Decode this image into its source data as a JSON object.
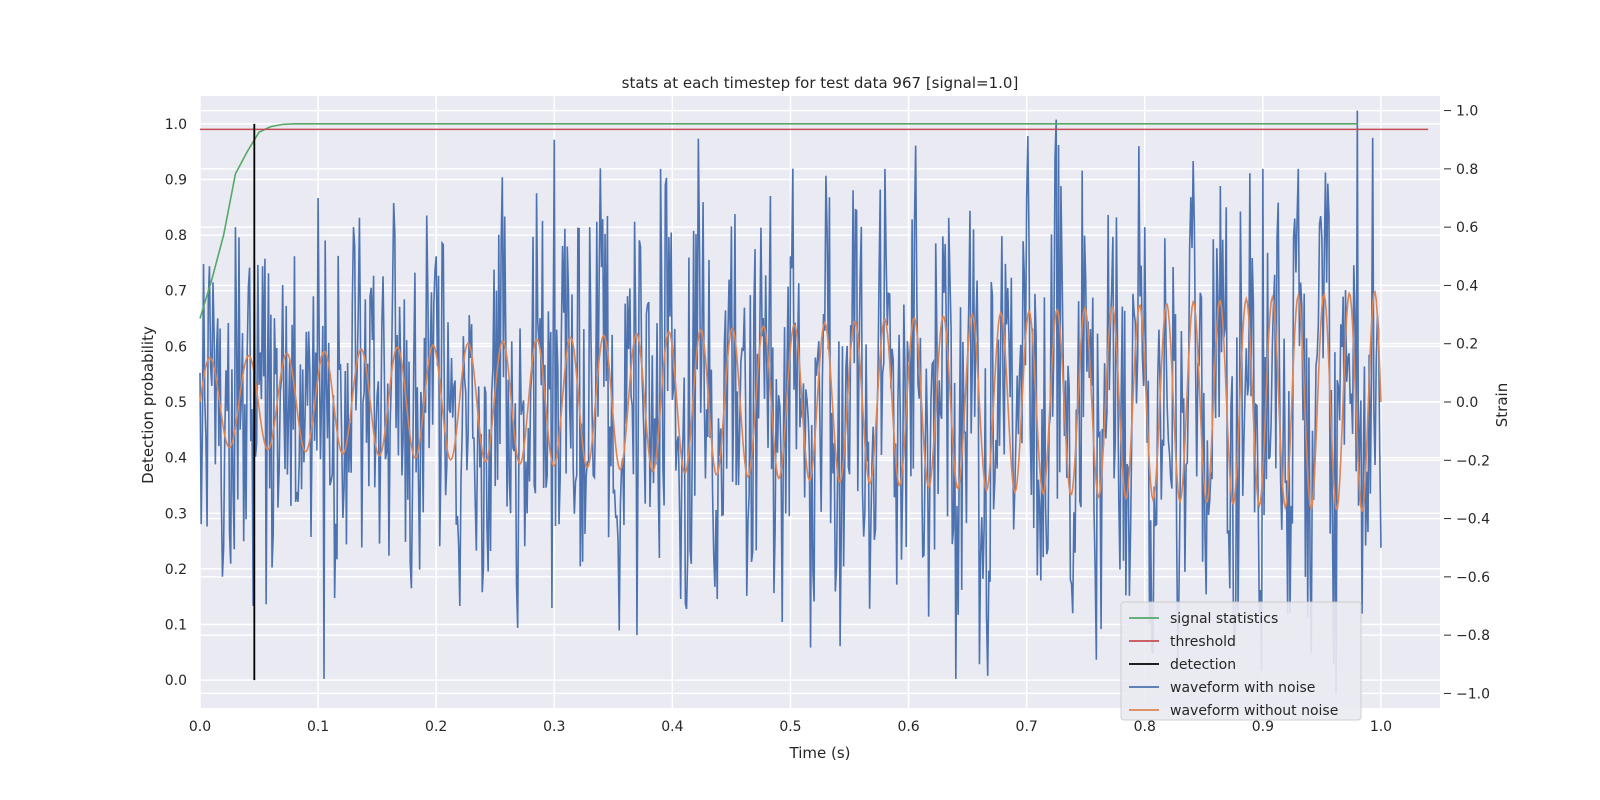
{
  "chart_data": {
    "type": "line",
    "title": "stats at each timestep for test data 967 [signal=1.0]",
    "xlabel": "Time (s)",
    "ylabel_left": "Detection probability",
    "ylabel_right": "Strain",
    "xlim": [
      0.0,
      1.05
    ],
    "ylim_left": [
      -0.05,
      1.05
    ],
    "ylim_right": [
      -1.05,
      1.05
    ],
    "grid": true,
    "legend_position": "lower right",
    "x_ticks": [
      "0.0",
      "0.1",
      "0.2",
      "0.3",
      "0.4",
      "0.5",
      "0.6",
      "0.7",
      "0.8",
      "0.9",
      "1.0"
    ],
    "y_left_ticks": [
      "0.0",
      "0.1",
      "0.2",
      "0.3",
      "0.4",
      "0.5",
      "0.6",
      "0.7",
      "0.8",
      "0.9",
      "1.0"
    ],
    "y_right_ticks": [
      "−1.0",
      "−0.8",
      "−0.6",
      "−0.4",
      "−0.2",
      "0.0",
      "0.2",
      "0.4",
      "0.6",
      "0.8",
      "1.0"
    ],
    "series": [
      {
        "name": "signal statistics",
        "axis": "left",
        "color": "#55a868",
        "x": [
          0.0,
          0.01,
          0.02,
          0.03,
          0.04,
          0.05,
          0.06,
          0.07,
          0.08,
          0.1,
          0.2,
          0.4,
          0.6,
          0.8,
          0.98
        ],
        "y": [
          0.65,
          0.72,
          0.8,
          0.91,
          0.95,
          0.985,
          0.995,
          0.999,
          1.0,
          1.0,
          1.0,
          1.0,
          1.0,
          1.0,
          1.0
        ]
      },
      {
        "name": "threshold",
        "axis": "left",
        "color": "#c44e52",
        "x": [
          0.0,
          1.04
        ],
        "y": [
          0.99,
          0.99
        ]
      },
      {
        "name": "detection",
        "axis": "left",
        "color": "#000000",
        "x": [
          0.046,
          0.046
        ],
        "y": [
          0.0,
          1.0
        ]
      },
      {
        "name": "waveform with noise",
        "axis": "right",
        "color": "#4c72b0",
        "x_start": 0.0,
        "x_step": 0.001,
        "description_visible": false,
        "keypoints": [
          [
            0.0,
            0.1
          ],
          [
            0.02,
            -0.5
          ],
          [
            0.03,
            0.6
          ],
          [
            0.045,
            -0.7
          ],
          [
            0.06,
            0.3
          ],
          [
            0.08,
            0.5
          ],
          [
            0.1,
            0.7
          ],
          [
            0.105,
            -0.95
          ],
          [
            0.13,
            0.6
          ],
          [
            0.2,
            0.5
          ],
          [
            0.22,
            -0.7
          ],
          [
            0.3,
            0.9
          ],
          [
            0.33,
            0.6
          ],
          [
            0.37,
            -0.8
          ],
          [
            0.39,
            0.8
          ],
          [
            0.5,
            0.5
          ],
          [
            0.58,
            0.8
          ],
          [
            0.64,
            -0.95
          ],
          [
            0.66,
            -0.9
          ],
          [
            0.7,
            0.7
          ],
          [
            0.8,
            0.6
          ],
          [
            0.9,
            0.8
          ],
          [
            0.93,
            0.8
          ],
          [
            0.96,
            -0.9
          ],
          [
            0.98,
            1.0
          ],
          [
            1.0,
            -0.5
          ]
        ]
      },
      {
        "name": "waveform without noise",
        "axis": "right",
        "color": "#dd8452",
        "amplitude_start": 0.15,
        "amplitude_end": 0.38,
        "frequency_start_hz": 30,
        "frequency_end_hz": 47
      }
    ]
  }
}
